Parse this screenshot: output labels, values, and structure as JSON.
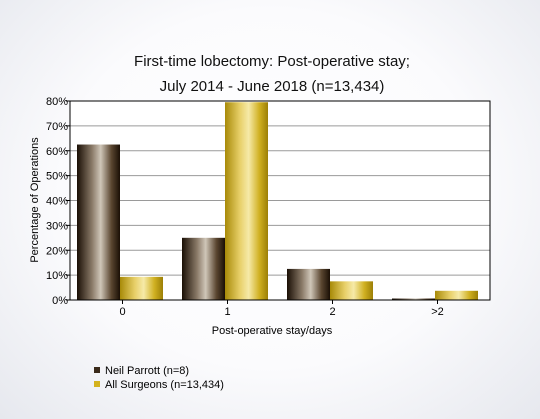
{
  "chart_data": {
    "type": "bar",
    "title_line1": "First-time lobectomy: Post-operative stay;",
    "title_line2": "July 2014 - June 2018 (n=13,434)",
    "xlabel": "Post-operative stay/days",
    "ylabel": "Percentage of Operations",
    "categories": [
      "0",
      "1",
      "2",
      ">2"
    ],
    "yticks": [
      "0%",
      "10%",
      "20%",
      "30%",
      "40%",
      "50%",
      "60%",
      "70%",
      "80%"
    ],
    "ylim": [
      0,
      80
    ],
    "grid": true,
    "legend_position": "bottom-left",
    "series": [
      {
        "name": "Neil Parrott (n=8)",
        "values": [
          62.5,
          25.0,
          12.5,
          0.0
        ],
        "color": "#3a2a1a"
      },
      {
        "name": "All Surgeons (n=13,434)",
        "values": [
          9.3,
          79.5,
          7.5,
          3.7
        ],
        "color": "#d4b21e"
      }
    ]
  }
}
